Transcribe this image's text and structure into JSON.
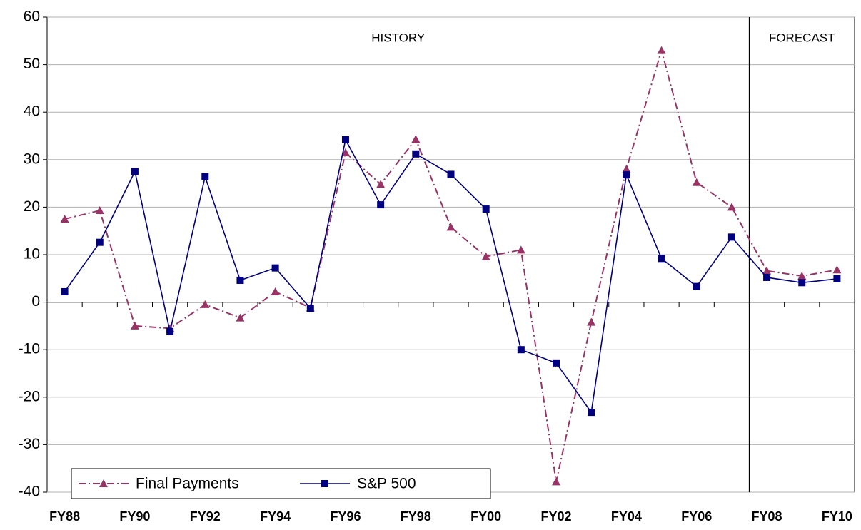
{
  "chart_data": {
    "type": "line",
    "categories": [
      "FY88",
      null,
      "FY90",
      null,
      "FY92",
      null,
      "FY94",
      null,
      "FY96",
      null,
      "FY98",
      null,
      "FY00",
      null,
      "FY02",
      null,
      "FY04",
      null,
      "FY06",
      null,
      "FY08",
      null,
      "FY10"
    ],
    "series": [
      {
        "name": "Final Payments",
        "color": "#993366",
        "marker": "triangle",
        "values": [
          17.5,
          19.3,
          -5,
          -5.5,
          -0.5,
          -3.3,
          2.2,
          -1.2,
          31.5,
          24.8,
          34.3,
          15.8,
          9.6,
          11,
          -37.8,
          -4.2,
          28,
          53,
          25.2,
          20,
          6.6,
          5.5,
          6.8
        ]
      },
      {
        "name": "S&P 500",
        "color": "#000080",
        "marker": "square",
        "values": [
          2.2,
          12.6,
          27.5,
          -6.2,
          26.4,
          4.6,
          7.2,
          -1.3,
          34.2,
          20.5,
          31.2,
          26.9,
          19.6,
          -10,
          -12.8,
          -23.2,
          26.8,
          9.2,
          3.3,
          13.7,
          5.2,
          4.1,
          4.9
        ]
      }
    ],
    "annotations": [
      "HISTORY",
      "FORECAST"
    ],
    "ylim": [
      -40,
      60
    ],
    "yticks": [
      -40,
      -30,
      -20,
      -10,
      0,
      10,
      20,
      30,
      40,
      50,
      60
    ],
    "grid": true,
    "legend": "lower left"
  }
}
